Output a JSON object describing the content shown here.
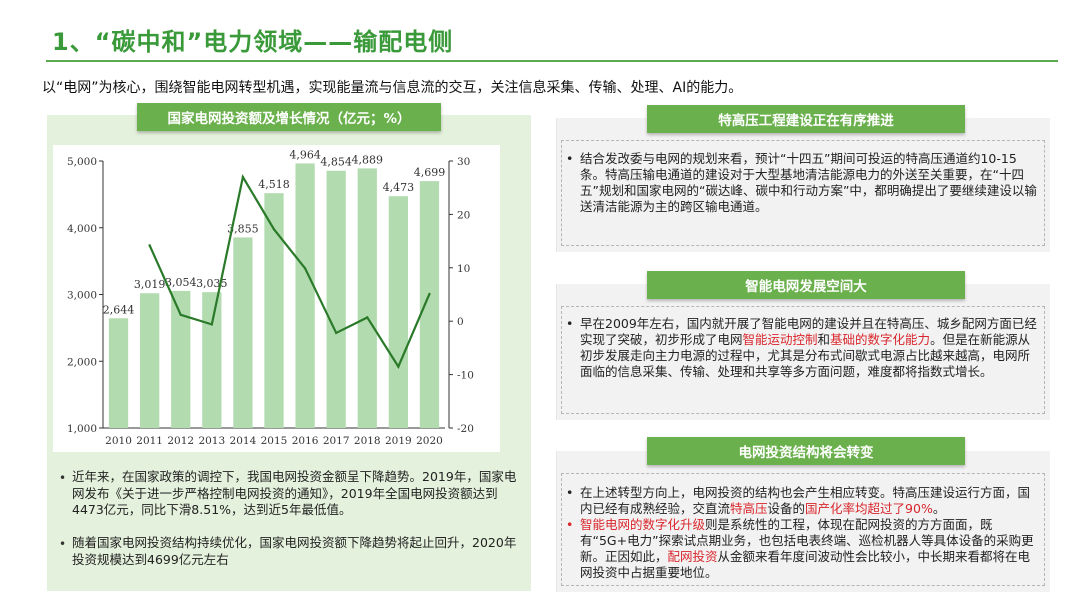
{
  "title": "1、“碳中和”电力领域——输配电侧",
  "intro": "以“电网”为核心，围绕智能电网转型机遇，实现能量流与信息流的交互，关注信息采集、传输、处理、AI的能力。",
  "left": {
    "header": "国家电网投资额及增长情况（亿元；%）",
    "bullets": [
      "近年来，在国家政策的调控下，我国电网投资金额呈下降趋势。2019年，国家电网发布《关于进一步严格控制电网投资的通知》，2019年全国电网投资额达到4473亿元，同比下滑8.51%，达到近5年最低值。",
      "随着国家电网投资结构持续优化，国家电网投资额下降趋势将起止回升，2020年投资规模达到4699亿元左右"
    ]
  },
  "chart_data": {
    "type": "bar",
    "categories": [
      "2010",
      "2011",
      "2012",
      "2013",
      "2014",
      "2015",
      "2016",
      "2017",
      "2018",
      "2019",
      "2020"
    ],
    "series": [
      {
        "kind": "bar",
        "values": [
          2644,
          3019,
          3054,
          3035,
          3855,
          4518,
          4964,
          4854,
          4889,
          4473,
          4699
        ]
      },
      {
        "kind": "line",
        "axis": "right",
        "values": [
          null,
          14.2,
          1.2,
          -0.6,
          27.0,
          17.2,
          9.9,
          -2.2,
          0.7,
          -8.5,
          5.1
        ]
      }
    ],
    "data_labels": [
      "2,644",
      "3,019",
      "3,054",
      "3,035",
      "3,855",
      "4,518",
      "4,964",
      "4,854",
      "4,889",
      "4,473",
      "4,699"
    ],
    "ylim": [
      1000,
      5000
    ],
    "y_ticks": [
      "1,000",
      "2,000",
      "3,000",
      "4,000",
      "5,000"
    ],
    "y2lim": [
      -20,
      30
    ],
    "y2_ticks": [
      "-20",
      "-10",
      "0",
      "10",
      "20",
      "30"
    ],
    "colors": {
      "bar": "#b3dbb0",
      "line": "#2a7a2a"
    },
    "grid": false
  },
  "right": {
    "sections": [
      {
        "header": "特高压工程建设正在有序推进",
        "paragraphs": [
          {
            "bullet": true,
            "spans": [
              {
                "t": "结合发改委与电网的规划来看，预计“十四五”期间可投运的特高压通道约10-15条。特高压输电通道的建设对于大型基地清洁能源电力的外送至关重要，在“十四五”规划和国家电网的“碳达峰、碳中和行动方案”中，都明确提出了要继续建设以输送清洁能源为主的跨区输电通道。"
              }
            ]
          }
        ]
      },
      {
        "header": "智能电网发展空间大",
        "paragraphs": [
          {
            "bullet": true,
            "spans": [
              {
                "t": "早在2009年左右，国内就开展了智能电网的建设并且在特高压、城乡配网方面已经实现了突破，初步形成了电网"
              },
              {
                "t": "智能运动控制",
                "hl": true
              },
              {
                "t": "和"
              },
              {
                "t": "基础的数字化能力",
                "hl": true
              },
              {
                "t": "。但是在新能源从初步发展走向主力电源的过程中，尤其是分布式间歇式电源占比越来越高，电网所面临的信息采集、传输、处理和共享等多方面问题，难度都将指数式增长。"
              }
            ]
          }
        ]
      },
      {
        "header": "电网投资结构将会转变",
        "paragraphs": [
          {
            "bullet": true,
            "spans": [
              {
                "t": "在上述转型方向上，电网投资的结构也会产生相应转变。特高压建设运行方面，国内已经有成熟经验，交直流"
              },
              {
                "t": "特高压",
                "hl": true
              },
              {
                "t": "设备的"
              },
              {
                "t": "国产化率均超过了90%",
                "hl": true
              },
              {
                "t": "。"
              }
            ]
          },
          {
            "bullet": true,
            "bullet_red": true,
            "spans": [
              {
                "t": "智能电网的数字化升级",
                "hl": true
              },
              {
                "t": "则是系统性的工程，体现在配网投资的方方面面，既有“5G+电力”探索试点期业务，也包括电表终端、巡检机器人等具体设备的采购更新。正因如此，"
              },
              {
                "t": "配网投资",
                "hl": true
              },
              {
                "t": "从金额来看年度间波动性会比较小，中长期来看都将在电网投资中占据重要地位。"
              }
            ]
          }
        ]
      }
    ]
  }
}
